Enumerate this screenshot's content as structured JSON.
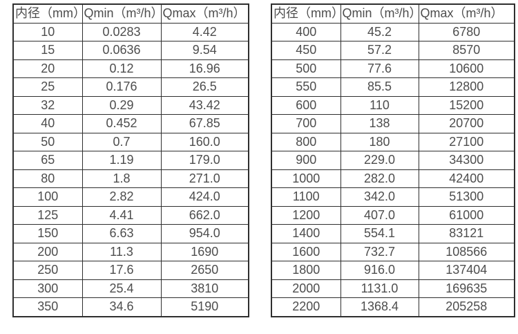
{
  "colors": {
    "background": "#ffffff",
    "border": "#2e2e2e",
    "text": "#4d4d4d"
  },
  "tables": [
    {
      "headers": [
        "内径（mm）",
        "Qmin（m³/h）",
        "Qmax（m³/h）"
      ],
      "rows": [
        [
          "10",
          "0.0283",
          "4.42"
        ],
        [
          "15",
          "0.0636",
          "9.54"
        ],
        [
          "20",
          "0.12",
          "16.96"
        ],
        [
          "25",
          "0.176",
          "26.5"
        ],
        [
          "32",
          "0.29",
          "43.42"
        ],
        [
          "40",
          "0.452",
          "67.85"
        ],
        [
          "50",
          "0.7",
          "160.0"
        ],
        [
          "65",
          "1.19",
          "179.0"
        ],
        [
          "80",
          "1.8",
          "271.0"
        ],
        [
          "100",
          "2.82",
          "424.0"
        ],
        [
          "125",
          "4.41",
          "662.0"
        ],
        [
          "150",
          "6.63",
          "954.0"
        ],
        [
          "200",
          "11.3",
          "1690"
        ],
        [
          "250",
          "17.6",
          "2650"
        ],
        [
          "300",
          "25.4",
          "3810"
        ],
        [
          "350",
          "34.6",
          "5190"
        ]
      ]
    },
    {
      "headers": [
        "内径（mm）",
        "Qmin（m³/h）",
        "Qmax（m³/h）"
      ],
      "rows": [
        [
          "400",
          "45.2",
          "6780"
        ],
        [
          "450",
          "57.2",
          "8570"
        ],
        [
          "500",
          "77.6",
          "10600"
        ],
        [
          "550",
          "85.5",
          "12800"
        ],
        [
          "600",
          "110",
          "15200"
        ],
        [
          "700",
          "138",
          "20700"
        ],
        [
          "800",
          "180",
          "27100"
        ],
        [
          "900",
          "229.0",
          "34300"
        ],
        [
          "1000",
          "282.0",
          "42400"
        ],
        [
          "1100",
          "342.0",
          "51300"
        ],
        [
          "1200",
          "407.0",
          "61000"
        ],
        [
          "1400",
          "554.1",
          "83121"
        ],
        [
          "1600",
          "732.7",
          "108566"
        ],
        [
          "1800",
          "916.0",
          "137404"
        ],
        [
          "2000",
          "1131.0",
          "169635"
        ],
        [
          "2200",
          "1368.4",
          "205258"
        ]
      ]
    }
  ]
}
